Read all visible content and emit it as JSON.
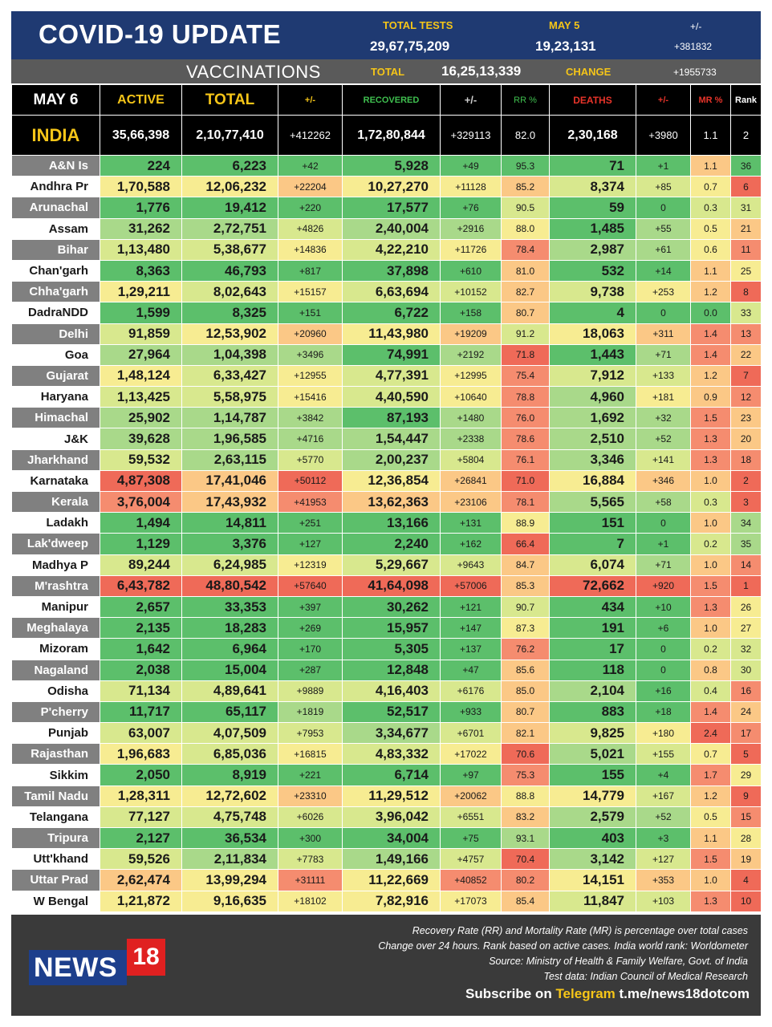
{
  "header": {
    "title": "COVID-19 UPDATE",
    "total_tests_label": "TOTAL TESTS",
    "total_tests_value": "29,67,75,209",
    "date_label": "MAY 5",
    "date_value": "19,23,131",
    "pm_label": "+/-",
    "pm_value": "+381832",
    "vaccinations_label": "VACCINATIONS",
    "vacc_total_label": "TOTAL",
    "vacc_total_value": "16,25,13,339",
    "vacc_change_label": "CHANGE",
    "vacc_change_value": "+1955733"
  },
  "columns": {
    "date": "MAY 6",
    "active": "ACTIVE",
    "total": "TOTAL",
    "pm1": "+/-",
    "recovered": "RECOVERED",
    "pm2": "+/-",
    "rr": "RR %",
    "deaths": "DEATHS",
    "pm3": "+/-",
    "mr": "MR %",
    "rank": "Rank"
  },
  "india": {
    "name": "INDIA",
    "active": "35,66,398",
    "total": "2,10,77,410",
    "total_change": "+412262",
    "recovered": "1,72,80,844",
    "recovered_change": "+329113",
    "rr": "82.0",
    "deaths": "2,30,168",
    "deaths_change": "+3980",
    "mr": "1.1",
    "rank": "2"
  },
  "states": [
    {
      "name": "A&N Is",
      "active": "224",
      "total": "6,223",
      "tc": "+42",
      "rec": "5,928",
      "rc": "+49",
      "rr": "95.3",
      "deaths": "71",
      "dc": "+1",
      "mr": "1.1",
      "rank": "36"
    },
    {
      "name": "Andhra Pr",
      "active": "1,70,588",
      "total": "12,06,232",
      "tc": "+22204",
      "rec": "10,27,270",
      "rc": "+11128",
      "rr": "85.2",
      "deaths": "8,374",
      "dc": "+85",
      "mr": "0.7",
      "rank": "6"
    },
    {
      "name": "Arunachal",
      "active": "1,776",
      "total": "19,412",
      "tc": "+220",
      "rec": "17,577",
      "rc": "+76",
      "rr": "90.5",
      "deaths": "59",
      "dc": "0",
      "mr": "0.3",
      "rank": "31"
    },
    {
      "name": "Assam",
      "active": "31,262",
      "total": "2,72,751",
      "tc": "+4826",
      "rec": "2,40,004",
      "rc": "+2916",
      "rr": "88.0",
      "deaths": "1,485",
      "dc": "+55",
      "mr": "0.5",
      "rank": "21"
    },
    {
      "name": "Bihar",
      "active": "1,13,480",
      "total": "5,38,677",
      "tc": "+14836",
      "rec": "4,22,210",
      "rc": "+11726",
      "rr": "78.4",
      "deaths": "2,987",
      "dc": "+61",
      "mr": "0.6",
      "rank": "11"
    },
    {
      "name": "Chan'garh",
      "active": "8,363",
      "total": "46,793",
      "tc": "+817",
      "rec": "37,898",
      "rc": "+610",
      "rr": "81.0",
      "deaths": "532",
      "dc": "+14",
      "mr": "1.1",
      "rank": "25"
    },
    {
      "name": "Chha'garh",
      "active": "1,29,211",
      "total": "8,02,643",
      "tc": "+15157",
      "rec": "6,63,694",
      "rc": "+10152",
      "rr": "82.7",
      "deaths": "9,738",
      "dc": "+253",
      "mr": "1.2",
      "rank": "8"
    },
    {
      "name": "DadraNDD",
      "active": "1,599",
      "total": "8,325",
      "tc": "+151",
      "rec": "6,722",
      "rc": "+158",
      "rr": "80.7",
      "deaths": "4",
      "dc": "0",
      "mr": "0.0",
      "rank": "33"
    },
    {
      "name": "Delhi",
      "active": "91,859",
      "total": "12,53,902",
      "tc": "+20960",
      "rec": "11,43,980",
      "rc": "+19209",
      "rr": "91.2",
      "deaths": "18,063",
      "dc": "+311",
      "mr": "1.4",
      "rank": "13"
    },
    {
      "name": "Goa",
      "active": "27,964",
      "total": "1,04,398",
      "tc": "+3496",
      "rec": "74,991",
      "rc": "+2192",
      "rr": "71.8",
      "deaths": "1,443",
      "dc": "+71",
      "mr": "1.4",
      "rank": "22"
    },
    {
      "name": "Gujarat",
      "active": "1,48,124",
      "total": "6,33,427",
      "tc": "+12955",
      "rec": "4,77,391",
      "rc": "+12995",
      "rr": "75.4",
      "deaths": "7,912",
      "dc": "+133",
      "mr": "1.2",
      "rank": "7"
    },
    {
      "name": "Haryana",
      "active": "1,13,425",
      "total": "5,58,975",
      "tc": "+15416",
      "rec": "4,40,590",
      "rc": "+10640",
      "rr": "78.8",
      "deaths": "4,960",
      "dc": "+181",
      "mr": "0.9",
      "rank": "12"
    },
    {
      "name": "Himachal",
      "active": "25,902",
      "total": "1,14,787",
      "tc": "+3842",
      "rec": "87,193",
      "rc": "+1480",
      "rr": "76.0",
      "deaths": "1,692",
      "dc": "+32",
      "mr": "1.5",
      "rank": "23"
    },
    {
      "name": "J&K",
      "active": "39,628",
      "total": "1,96,585",
      "tc": "+4716",
      "rec": "1,54,447",
      "rc": "+2338",
      "rr": "78.6",
      "deaths": "2,510",
      "dc": "+52",
      "mr": "1.3",
      "rank": "20"
    },
    {
      "name": "Jharkhand",
      "active": "59,532",
      "total": "2,63,115",
      "tc": "+5770",
      "rec": "2,00,237",
      "rc": "+5804",
      "rr": "76.1",
      "deaths": "3,346",
      "dc": "+141",
      "mr": "1.3",
      "rank": "18"
    },
    {
      "name": "Karnataka",
      "active": "4,87,308",
      "total": "17,41,046",
      "tc": "+50112",
      "rec": "12,36,854",
      "rc": "+26841",
      "rr": "71.0",
      "deaths": "16,884",
      "dc": "+346",
      "mr": "1.0",
      "rank": "2"
    },
    {
      "name": "Kerala",
      "active": "3,76,004",
      "total": "17,43,932",
      "tc": "+41953",
      "rec": "13,62,363",
      "rc": "+23106",
      "rr": "78.1",
      "deaths": "5,565",
      "dc": "+58",
      "mr": "0.3",
      "rank": "3"
    },
    {
      "name": "Ladakh",
      "active": "1,494",
      "total": "14,811",
      "tc": "+251",
      "rec": "13,166",
      "rc": "+131",
      "rr": "88.9",
      "deaths": "151",
      "dc": "0",
      "mr": "1.0",
      "rank": "34"
    },
    {
      "name": "Lak'dweep",
      "active": "1,129",
      "total": "3,376",
      "tc": "+127",
      "rec": "2,240",
      "rc": "+162",
      "rr": "66.4",
      "deaths": "7",
      "dc": "+1",
      "mr": "0.2",
      "rank": "35"
    },
    {
      "name": "Madhya P",
      "active": "89,244",
      "total": "6,24,985",
      "tc": "+12319",
      "rec": "5,29,667",
      "rc": "+9643",
      "rr": "84.7",
      "deaths": "6,074",
      "dc": "+71",
      "mr": "1.0",
      "rank": "14"
    },
    {
      "name": "M'rashtra",
      "active": "6,43,782",
      "total": "48,80,542",
      "tc": "+57640",
      "rec": "41,64,098",
      "rc": "+57006",
      "rr": "85.3",
      "deaths": "72,662",
      "dc": "+920",
      "mr": "1.5",
      "rank": "1"
    },
    {
      "name": "Manipur",
      "active": "2,657",
      "total": "33,353",
      "tc": "+397",
      "rec": "30,262",
      "rc": "+121",
      "rr": "90.7",
      "deaths": "434",
      "dc": "+10",
      "mr": "1.3",
      "rank": "26"
    },
    {
      "name": "Meghalaya",
      "active": "2,135",
      "total": "18,283",
      "tc": "+269",
      "rec": "15,957",
      "rc": "+147",
      "rr": "87.3",
      "deaths": "191",
      "dc": "+6",
      "mr": "1.0",
      "rank": "27"
    },
    {
      "name": "Mizoram",
      "active": "1,642",
      "total": "6,964",
      "tc": "+170",
      "rec": "5,305",
      "rc": "+137",
      "rr": "76.2",
      "deaths": "17",
      "dc": "0",
      "mr": "0.2",
      "rank": "32"
    },
    {
      "name": "Nagaland",
      "active": "2,038",
      "total": "15,004",
      "tc": "+287",
      "rec": "12,848",
      "rc": "+47",
      "rr": "85.6",
      "deaths": "118",
      "dc": "0",
      "mr": "0.8",
      "rank": "30"
    },
    {
      "name": "Odisha",
      "active": "71,134",
      "total": "4,89,641",
      "tc": "+9889",
      "rec": "4,16,403",
      "rc": "+6176",
      "rr": "85.0",
      "deaths": "2,104",
      "dc": "+16",
      "mr": "0.4",
      "rank": "16"
    },
    {
      "name": "P'cherry",
      "active": "11,717",
      "total": "65,117",
      "tc": "+1819",
      "rec": "52,517",
      "rc": "+933",
      "rr": "80.7",
      "deaths": "883",
      "dc": "+18",
      "mr": "1.4",
      "rank": "24"
    },
    {
      "name": "Punjab",
      "active": "63,007",
      "total": "4,07,509",
      "tc": "+7953",
      "rec": "3,34,677",
      "rc": "+6701",
      "rr": "82.1",
      "deaths": "9,825",
      "dc": "+180",
      "mr": "2.4",
      "rank": "17"
    },
    {
      "name": "Rajasthan",
      "active": "1,96,683",
      "total": "6,85,036",
      "tc": "+16815",
      "rec": "4,83,332",
      "rc": "+17022",
      "rr": "70.6",
      "deaths": "5,021",
      "dc": "+155",
      "mr": "0.7",
      "rank": "5"
    },
    {
      "name": "Sikkim",
      "active": "2,050",
      "total": "8,919",
      "tc": "+221",
      "rec": "6,714",
      "rc": "+97",
      "rr": "75.3",
      "deaths": "155",
      "dc": "+4",
      "mr": "1.7",
      "rank": "29"
    },
    {
      "name": "Tamil Nadu",
      "active": "1,28,311",
      "total": "12,72,602",
      "tc": "+23310",
      "rec": "11,29,512",
      "rc": "+20062",
      "rr": "88.8",
      "deaths": "14,779",
      "dc": "+167",
      "mr": "1.2",
      "rank": "9"
    },
    {
      "name": "Telangana",
      "active": "77,127",
      "total": "4,75,748",
      "tc": "+6026",
      "rec": "3,96,042",
      "rc": "+6551",
      "rr": "83.2",
      "deaths": "2,579",
      "dc": "+52",
      "mr": "0.5",
      "rank": "15"
    },
    {
      "name": "Tripura",
      "active": "2,127",
      "total": "36,534",
      "tc": "+300",
      "rec": "34,004",
      "rc": "+75",
      "rr": "93.1",
      "deaths": "403",
      "dc": "+3",
      "mr": "1.1",
      "rank": "28"
    },
    {
      "name": "Utt'khand",
      "active": "59,526",
      "total": "2,11,834",
      "tc": "+7783",
      "rec": "1,49,166",
      "rc": "+4757",
      "rr": "70.4",
      "deaths": "3,142",
      "dc": "+127",
      "mr": "1.5",
      "rank": "19"
    },
    {
      "name": "Uttar Prad",
      "active": "2,62,474",
      "total": "13,99,294",
      "tc": "+31111",
      "rec": "11,22,669",
      "rc": "+40852",
      "rr": "80.2",
      "deaths": "14,151",
      "dc": "+353",
      "mr": "1.0",
      "rank": "4"
    },
    {
      "name": "W Bengal",
      "active": "1,21,872",
      "total": "9,16,635",
      "tc": "+18102",
      "rec": "7,82,916",
      "rc": "+17073",
      "rr": "85.4",
      "deaths": "11,847",
      "dc": "+103",
      "mr": "1.3",
      "rank": "10"
    }
  ],
  "colors": {
    "green": "#5cbf6b",
    "light_green": "#a9d98a",
    "yellow_green": "#d8e88e",
    "yellow": "#f7ec92",
    "orange": "#fbc886",
    "salmon": "#f58c6f",
    "red": "#ef6a58",
    "header_blue": "#1f3a72",
    "accent_yellow": "#f5c518"
  },
  "footer": {
    "logo_text": "NEWS",
    "logo_num": "18",
    "note1": "Recovery Rate (RR) and Mortality Rate (MR) is percentage over total cases",
    "note2": "Change over 24 hours. Rank based on active cases. India world rank: Worldometer",
    "note3": "Source: Ministry of Health & Family Welfare, Govt. of India",
    "note4": "Test data: Indian Council of Medical Research",
    "subscribe_prefix": "Subscribe on",
    "subscribe_app": "Telegram",
    "subscribe_link": "t.me/news18dotcom"
  }
}
